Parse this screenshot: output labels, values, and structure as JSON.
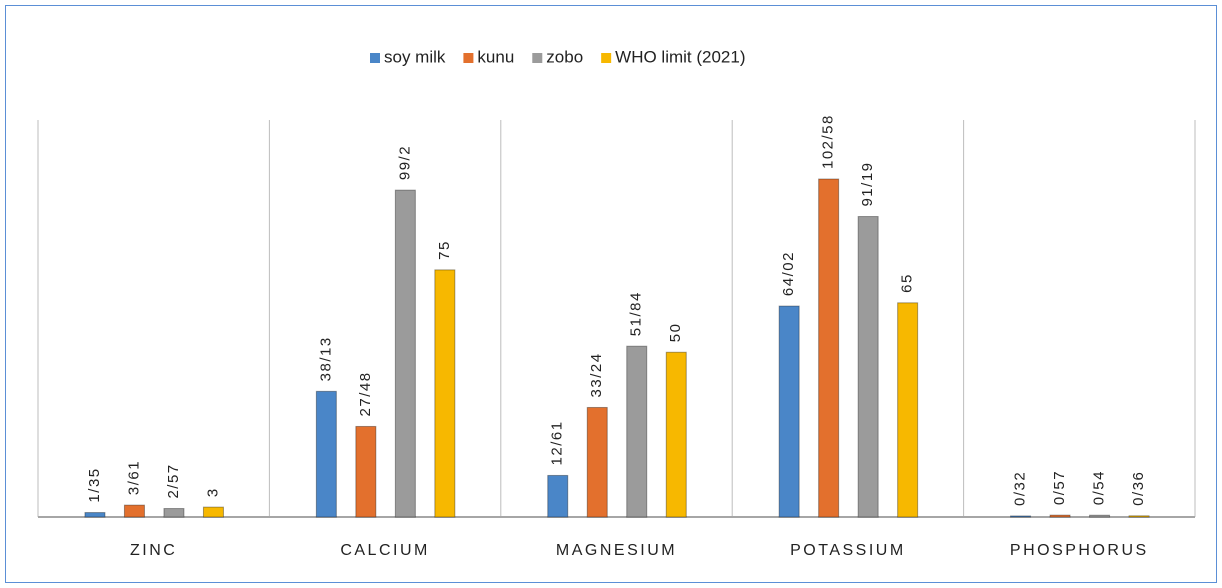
{
  "chart_data": {
    "type": "bar",
    "categories": [
      "ZINC",
      "CALCIUM",
      "MAGNESIUM",
      "POTASSIUM",
      "PHOSPHORUS"
    ],
    "series": [
      {
        "name": "soy milk",
        "color": "#4a86c8",
        "values": [
          1.35,
          38.13,
          12.61,
          64.02,
          0.32
        ],
        "value_labels": [
          "1/35",
          "38/13",
          "12/61",
          "64/02",
          "0/32"
        ]
      },
      {
        "name": "kunu",
        "color": "#e3702d",
        "values": [
          3.61,
          27.48,
          33.24,
          102.58,
          0.57
        ],
        "value_labels": [
          "3/61",
          "27/48",
          "33/24",
          "102/58",
          "0/57"
        ]
      },
      {
        "name": "zobo",
        "color": "#9b9b9b",
        "values": [
          2.57,
          99.2,
          51.84,
          91.19,
          0.54
        ],
        "value_labels": [
          "2/57",
          "99/2",
          "51/84",
          "91/19",
          "0/54"
        ]
      },
      {
        "name": "WHO limit (2021)",
        "color": "#f7b800",
        "values": [
          3,
          75,
          50,
          65,
          0.36
        ],
        "value_labels": [
          "3",
          "75",
          "50",
          "65",
          "0/36"
        ]
      }
    ],
    "legend": "top"
  }
}
